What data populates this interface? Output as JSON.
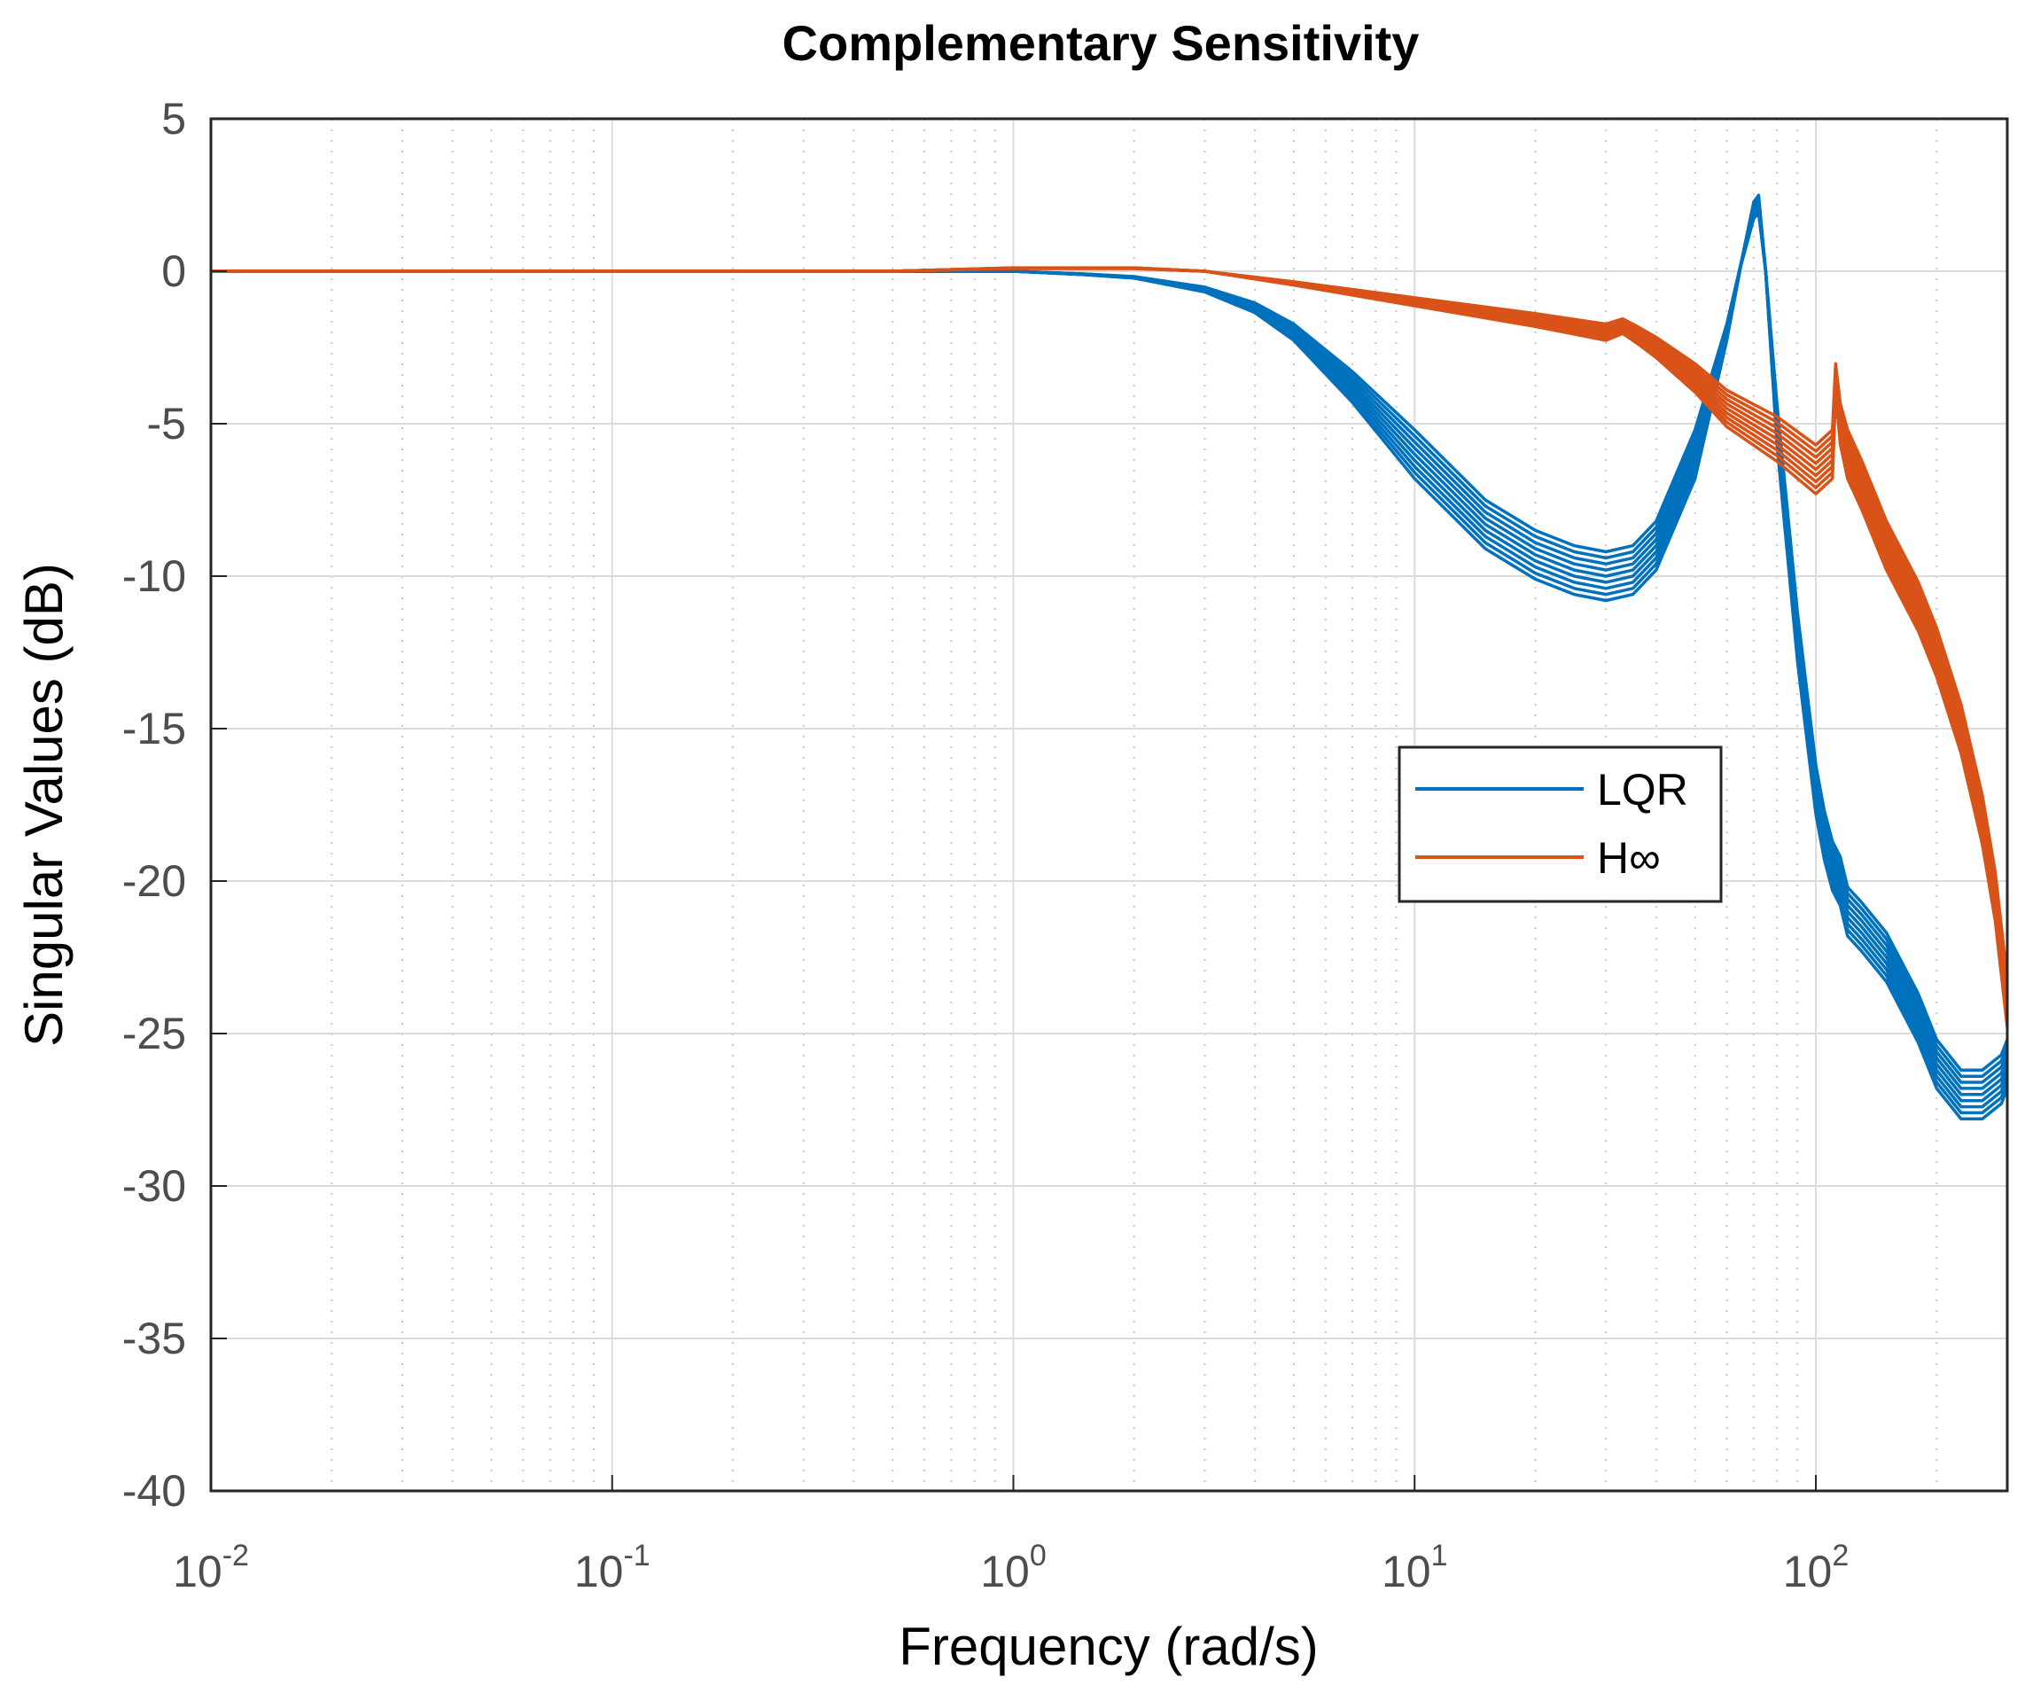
{
  "chart_data": {
    "type": "line",
    "title": "Complementary Sensitivity",
    "xlabel": "Frequency (rad/s)",
    "ylabel": "Singular Values (dB)",
    "xscale": "log",
    "xlim": [
      0.01,
      300
    ],
    "ylim": [
      -40,
      5
    ],
    "grid": true,
    "minor_grid": true,
    "legend_position": "center-right",
    "xticks": [
      {
        "value": 0.01,
        "base": "10",
        "exp": "-2"
      },
      {
        "value": 0.1,
        "base": "10",
        "exp": "-1"
      },
      {
        "value": 1,
        "base": "10",
        "exp": "0"
      },
      {
        "value": 10,
        "base": "10",
        "exp": "1"
      },
      {
        "value": 100,
        "base": "10",
        "exp": "2"
      }
    ],
    "yticks": [
      {
        "value": 5,
        "label": "5"
      },
      {
        "value": 0,
        "label": "0"
      },
      {
        "value": -5,
        "label": "-5"
      },
      {
        "value": -10,
        "label": "-10"
      },
      {
        "value": -15,
        "label": "-15"
      },
      {
        "value": -20,
        "label": "-20"
      },
      {
        "value": -25,
        "label": "-25"
      },
      {
        "value": -30,
        "label": "-30"
      },
      {
        "value": -35,
        "label": "-35"
      },
      {
        "value": -40,
        "label": "-40"
      }
    ],
    "series": [
      {
        "name": "LQR",
        "color": "#0072BD",
        "x": [
          0.01,
          0.1,
          0.5,
          1,
          1.5,
          2,
          3,
          4,
          5,
          7,
          10,
          15,
          20,
          25,
          30,
          35,
          40,
          50,
          60,
          65,
          70,
          72,
          75,
          80,
          90,
          100,
          105,
          110,
          115,
          120,
          130,
          150,
          180,
          200,
          230,
          260,
          290,
          300
        ],
        "values": [
          0,
          0,
          0,
          0,
          -0.1,
          -0.2,
          -0.6,
          -1.2,
          -2.0,
          -3.8,
          -6.0,
          -8.3,
          -9.3,
          -9.8,
          -10.0,
          -9.8,
          -9.0,
          -6.0,
          -2.0,
          0.2,
          2.0,
          2.2,
          0.0,
          -5.0,
          -12.0,
          -17.0,
          -18.5,
          -19.5,
          -20.0,
          -21.0,
          -21.5,
          -22.5,
          -24.5,
          -26.0,
          -27.0,
          -27.0,
          -26.5,
          -26.0
        ]
      },
      {
        "name": "H∞",
        "color": "#D95319",
        "x": [
          0.01,
          0.1,
          0.5,
          1,
          2,
          3,
          5,
          10,
          20,
          30,
          33,
          36,
          40,
          50,
          60,
          80,
          100,
          110,
          112,
          115,
          120,
          130,
          150,
          180,
          200,
          230,
          260,
          280,
          300
        ],
        "values": [
          0,
          0,
          0,
          0.1,
          0.1,
          0,
          -0.4,
          -1.0,
          -1.6,
          -2.0,
          -1.8,
          -2.1,
          -2.5,
          -3.5,
          -4.5,
          -5.5,
          -6.5,
          -6.0,
          -3.5,
          -5.0,
          -6.0,
          -7.0,
          -9.0,
          -11.0,
          -12.5,
          -15.0,
          -18.0,
          -20.5,
          -24.0
        ]
      }
    ]
  }
}
